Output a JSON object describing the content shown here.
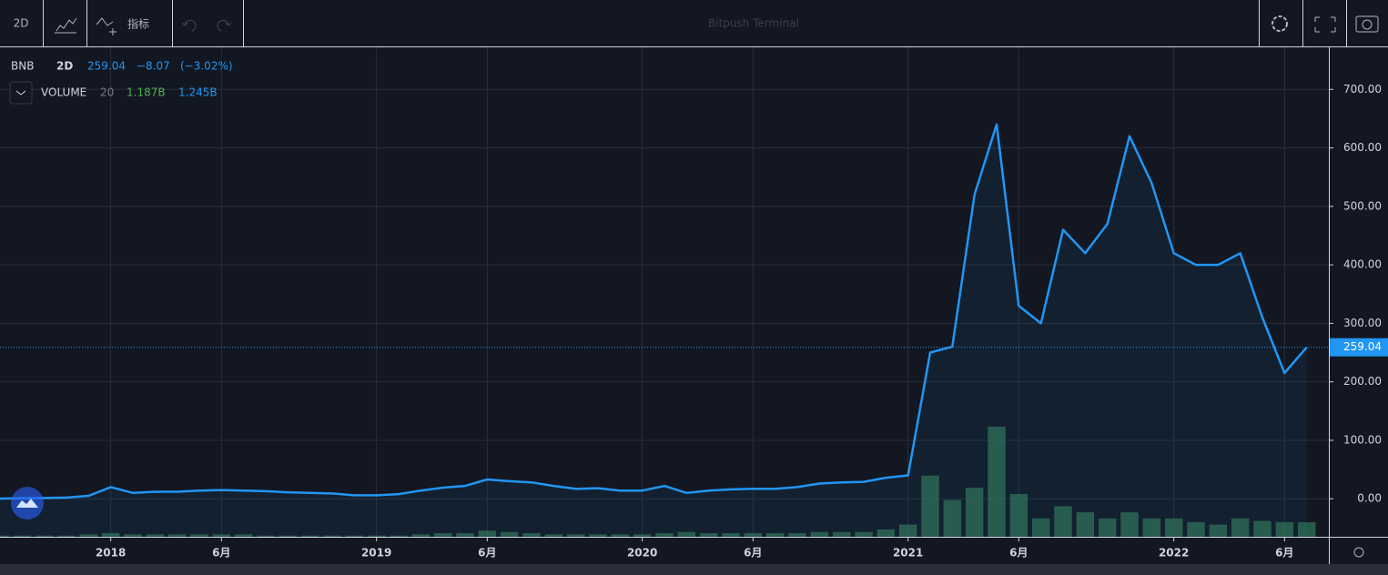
{
  "toolbar": {
    "interval": "2D",
    "indicators": "指标",
    "title": "Bitpush Terminal"
  },
  "legend": {
    "interval": "2D",
    "change": "−8.07",
    "change_percent": "(−3.02%)",
    "volume_period": "20",
    "volume_value": "1.187B",
    "volume_ma": "1.245B"
  },
  "chart_data": {
    "type": "line",
    "x": [
      "2017-08",
      "2017-09",
      "2017-10",
      "2017-11",
      "2017-12",
      "2018-01",
      "2018-02",
      "2018-03",
      "2018-04",
      "2018-05",
      "2018-06",
      "2018-07",
      "2018-08",
      "2018-09",
      "2018-10",
      "2018-11",
      "2018-12",
      "2019-01",
      "2019-02",
      "2019-03",
      "2019-04",
      "2019-05",
      "2019-06",
      "2019-07",
      "2019-08",
      "2019-09",
      "2019-10",
      "2019-11",
      "2019-12",
      "2020-01",
      "2020-02",
      "2020-03",
      "2020-04",
      "2020-05",
      "2020-06",
      "2020-07",
      "2020-08",
      "2020-09",
      "2020-10",
      "2020-11",
      "2020-12",
      "2021-01",
      "2021-02",
      "2021-03",
      "2021-04",
      "2021-05",
      "2021-06",
      "2021-07",
      "2021-08",
      "2021-09",
      "2021-10",
      "2021-11",
      "2021-12",
      "2022-01",
      "2022-02",
      "2022-03",
      "2022-04",
      "2022-05",
      "2022-06",
      "2022-07"
    ],
    "series": [
      {
        "name": "BNB",
        "color": "#2196f3",
        "values": [
          0.3,
          1,
          1.2,
          2,
          5,
          20,
          10,
          12,
          12,
          14,
          15,
          14,
          13,
          11,
          10,
          9,
          6,
          6,
          8,
          14,
          19,
          22,
          33,
          30,
          28,
          22,
          17,
          18,
          14,
          14,
          22,
          10,
          14,
          16,
          17,
          17,
          20,
          26,
          28,
          29,
          36,
          40,
          250,
          260,
          520,
          640,
          330,
          300,
          460,
          420,
          470,
          620,
          540,
          420,
          400,
          400,
          420,
          310,
          215,
          259
        ]
      },
      {
        "name": "VOLUME",
        "color": "#2e6b58",
        "axis": "y2",
        "values": [
          0.1,
          0.1,
          0.1,
          0.1,
          0.2,
          0.3,
          0.2,
          0.2,
          0.2,
          0.2,
          0.2,
          0.2,
          0.1,
          0.1,
          0.1,
          0.1,
          0.1,
          0.1,
          0.1,
          0.2,
          0.3,
          0.3,
          0.5,
          0.4,
          0.3,
          0.2,
          0.2,
          0.2,
          0.2,
          0.2,
          0.3,
          0.4,
          0.3,
          0.3,
          0.3,
          0.3,
          0.3,
          0.4,
          0.4,
          0.4,
          0.6,
          1,
          5,
          3,
          4,
          9,
          3.5,
          1.5,
          2.5,
          2,
          1.5,
          2,
          1.5,
          1.5,
          1.2,
          1,
          1.5,
          1.3,
          1.2,
          1.187
        ]
      }
    ],
    "xlim": [
      "2017-08",
      "2022-08"
    ],
    "xticks": [
      {
        "value": "2018-01",
        "label": "2018"
      },
      {
        "value": "2018-06",
        "label": "6月"
      },
      {
        "value": "2019-01",
        "label": "2019"
      },
      {
        "value": "2019-06",
        "label": "6月"
      },
      {
        "value": "2020-01",
        "label": "2020"
      },
      {
        "value": "2020-06",
        "label": "6月"
      },
      {
        "value": "2021-01",
        "label": "2021"
      },
      {
        "value": "2021-06",
        "label": "6月"
      },
      {
        "value": "2022-01",
        "label": "2022"
      },
      {
        "value": "2022-06",
        "label": "6月"
      }
    ],
    "ylim": [
      -65,
      772
    ],
    "yticks": [
      {
        "value": 0,
        "label": "0.00"
      },
      {
        "value": 100,
        "label": "100.00"
      },
      {
        "value": 200,
        "label": "200.00"
      },
      {
        "value": 300,
        "label": "300.00"
      },
      {
        "value": 400,
        "label": "400.00"
      },
      {
        "value": 500,
        "label": "500.00"
      },
      {
        "value": 600,
        "label": "600.00"
      },
      {
        "value": 700,
        "label": "700.00"
      }
    ],
    "y2lim": [
      0,
      40
    ],
    "last_value": 259.04,
    "grid": true
  }
}
